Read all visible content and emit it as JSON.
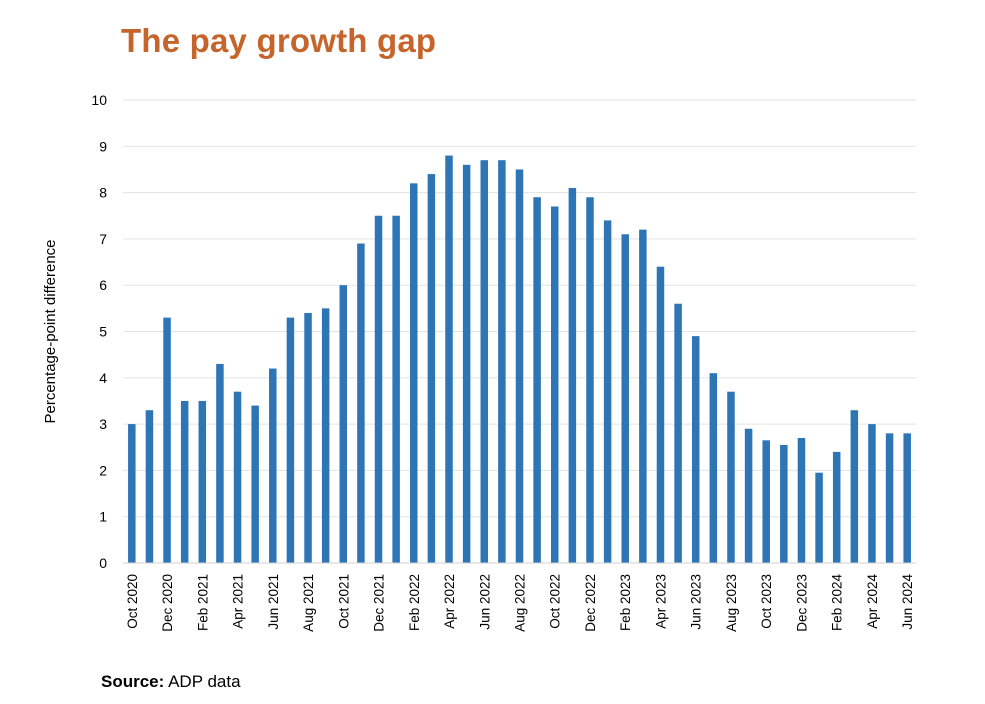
{
  "chart_data": {
    "type": "bar",
    "title": "The pay growth gap",
    "xlabel": "",
    "ylabel": "Percentage-point difference",
    "ylim": [
      0,
      10
    ],
    "yticks": [
      0,
      1,
      2,
      3,
      4,
      5,
      6,
      7,
      8,
      9,
      10
    ],
    "grid": true,
    "bar_color": "#2E75B6",
    "categories": [
      "Oct 2020",
      "Nov 2020",
      "Dec 2020",
      "Jan 2021",
      "Feb 2021",
      "Mar 2021",
      "Apr 2021",
      "May 2021",
      "Jun 2021",
      "Jul 2021",
      "Aug 2021",
      "Sep 2021",
      "Oct 2021",
      "Nov 2021",
      "Dec 2021",
      "Jan 2022",
      "Feb 2022",
      "Mar 2022",
      "Apr 2022",
      "May 2022",
      "Jun 2022",
      "Jul 2022",
      "Aug 2022",
      "Sep 2022",
      "Oct 2022",
      "Nov 2022",
      "Dec 2022",
      "Jan 2023",
      "Feb 2023",
      "Mar 2023",
      "Apr 2023",
      "May 2023",
      "Jun 2023",
      "Jul 2023",
      "Aug 2023",
      "Sep 2023",
      "Oct 2023",
      "Nov 2023",
      "Dec 2023",
      "Jan 2024",
      "Feb 2024",
      "Mar 2024",
      "Apr 2024",
      "May 2024",
      "Jun 2024"
    ],
    "tick_labels": [
      "Oct 2020",
      "Dec 2020",
      "Feb 2021",
      "Apr 2021",
      "Jun 2021",
      "Aug 2021",
      "Oct 2021",
      "Dec 2021",
      "Feb 2022",
      "Apr 2022",
      "Jun 2022",
      "Aug 2022",
      "Oct 2022",
      "Dec 2022",
      "Feb 2023",
      "Apr 2023",
      "Jun 2023",
      "Aug 2023",
      "Oct 2023",
      "Dec 2023",
      "Feb 2024",
      "Apr 2024",
      "Jun 2024"
    ],
    "values": [
      3.0,
      3.3,
      5.3,
      3.5,
      3.5,
      4.3,
      3.7,
      3.4,
      4.2,
      5.3,
      5.4,
      5.5,
      6.0,
      6.9,
      7.5,
      7.5,
      8.2,
      8.4,
      8.8,
      8.6,
      8.7,
      8.7,
      8.5,
      7.9,
      7.7,
      8.1,
      7.9,
      7.4,
      7.1,
      7.2,
      6.4,
      5.6,
      4.9,
      4.1,
      3.7,
      2.9,
      2.65,
      2.55,
      2.7,
      1.95,
      2.4,
      3.3,
      3.0,
      2.8,
      2.8
    ]
  },
  "source": {
    "label": "Source:",
    "text": " ADP data"
  }
}
